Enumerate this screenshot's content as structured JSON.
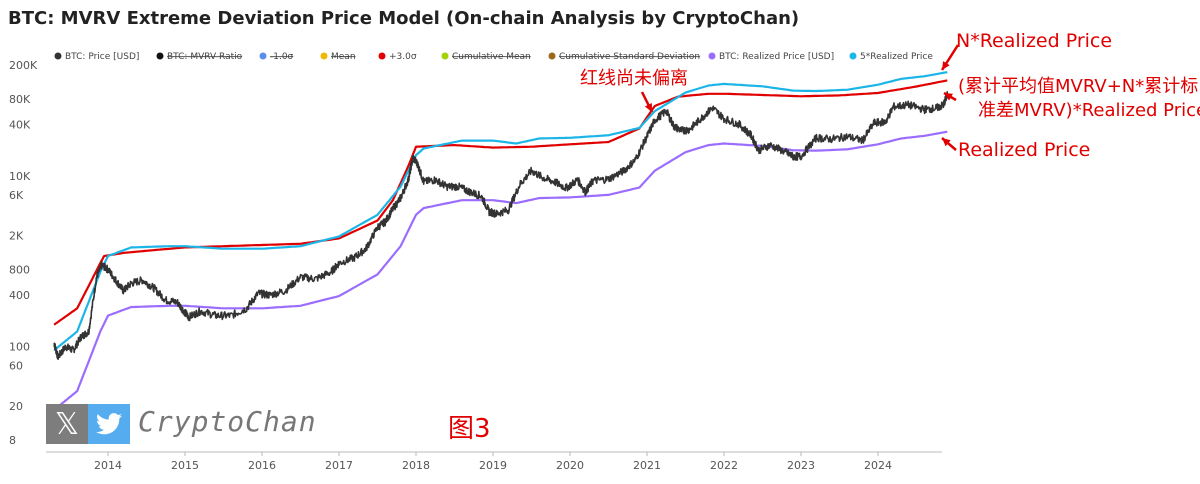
{
  "title": "BTC: MVRV Extreme Deviation Price Model (On-chain Analysis by CryptoChan)",
  "watermark": {
    "x_glyph": "𝕏",
    "brand": "CryptoChan",
    "icons": [
      "x-logo-icon",
      "twitter-bird-icon"
    ]
  },
  "figure_label": "图3",
  "annotations": {
    "top": "N*Realized Price",
    "middle_line1": "(累计平均值MVRV+N*累计标",
    "middle_line2": "准差MVRV)*Realized Price",
    "bottom": "Realized Price",
    "arrow_note": "红线尚未偏离",
    "color": "#e00000"
  },
  "chart_data": {
    "type": "line",
    "title": "BTC: MVRV Extreme Deviation Price Model (On-chain Analysis by CryptoChan)",
    "xlabel": "",
    "ylabel": "",
    "yscale": "log",
    "ylim": [
      6.5,
      230000
    ],
    "xlim": [
      2013.28,
      2024.9
    ],
    "grid": false,
    "legend_position": "top",
    "x_ticks": [
      "2014",
      "2015",
      "2016",
      "2017",
      "2018",
      "2019",
      "2020",
      "2021",
      "2022",
      "2023",
      "2024"
    ],
    "y_ticks": [
      "8",
      "20",
      "60",
      "100",
      "400",
      "800",
      "2K",
      "6K",
      "10K",
      "40K",
      "80K",
      "200K"
    ],
    "y_tick_values": [
      8,
      20,
      60,
      100,
      400,
      800,
      2000,
      6000,
      10000,
      40000,
      80000,
      200000
    ],
    "legend": [
      {
        "name": "BTC: Price [USD]",
        "color": "#333333",
        "struck": false
      },
      {
        "name": "BTC: MVRV Ratio",
        "color": "#111111",
        "struck": true
      },
      {
        "name": "-1.0σ",
        "color": "#5b8def",
        "struck": true
      },
      {
        "name": "Mean",
        "color": "#f2b705",
        "struck": true
      },
      {
        "name": "+3.0σ",
        "color": "#e00000",
        "struck": false
      },
      {
        "name": "Cumulative Mean",
        "color": "#a6d000",
        "struck": true
      },
      {
        "name": "Cumulative Standard Deviation",
        "color": "#9a6a1a",
        "struck": true
      },
      {
        "name": "BTC: Realized Price [USD]",
        "color": "#9b6dff",
        "struck": false
      },
      {
        "name": "5*Realized Price",
        "color": "#1cb5e8",
        "struck": false
      }
    ],
    "series": [
      {
        "name": "BTC: Price [USD]",
        "color": "#333333",
        "x": [
          2013.3,
          2013.35,
          2013.45,
          2013.55,
          2013.65,
          2013.75,
          2013.85,
          2013.92,
          2014.0,
          2014.1,
          2014.2,
          2014.3,
          2014.45,
          2014.6,
          2014.75,
          2014.9,
          2015.0,
          2015.05,
          2015.2,
          2015.4,
          2015.6,
          2015.8,
          2015.95,
          2016.1,
          2016.3,
          2016.5,
          2016.7,
          2016.9,
          2017.0,
          2017.2,
          2017.35,
          2017.5,
          2017.6,
          2017.7,
          2017.8,
          2017.9,
          2017.96,
          2018.02,
          2018.1,
          2018.25,
          2018.4,
          2018.55,
          2018.7,
          2018.85,
          2018.95,
          2019.05,
          2019.2,
          2019.35,
          2019.5,
          2019.65,
          2019.8,
          2019.95,
          2020.1,
          2020.2,
          2020.3,
          2020.5,
          2020.7,
          2020.85,
          2021.0,
          2021.1,
          2021.25,
          2021.35,
          2021.45,
          2021.55,
          2021.7,
          2021.85,
          2022.0,
          2022.2,
          2022.35,
          2022.45,
          2022.6,
          2022.8,
          2022.9,
          2023.0,
          2023.2,
          2023.4,
          2023.6,
          2023.8,
          2023.95,
          2024.1,
          2024.2,
          2024.4,
          2024.6,
          2024.75,
          2024.85,
          2024.9
        ],
        "y": [
          110,
          75,
          100,
          90,
          130,
          150,
          650,
          900,
          800,
          600,
          450,
          550,
          600,
          480,
          350,
          330,
          250,
          220,
          260,
          230,
          230,
          280,
          420,
          400,
          450,
          650,
          620,
          750,
          950,
          1100,
          1400,
          2500,
          2900,
          4100,
          5500,
          9000,
          16500,
          13800,
          8500,
          9000,
          7500,
          7500,
          6500,
          5800,
          3800,
          3600,
          4000,
          8000,
          11500,
          9500,
          8500,
          7200,
          9000,
          6500,
          8800,
          9200,
          11500,
          15500,
          29000,
          45000,
          58000,
          38000,
          34000,
          35000,
          47000,
          63000,
          47000,
          40000,
          30000,
          20000,
          23000,
          19000,
          16800,
          17000,
          28000,
          27000,
          29000,
          26000,
          42000,
          43000,
          65000,
          68000,
          60000,
          62000,
          68000,
          90000
        ]
      },
      {
        "name": "+3.0σ",
        "color": "#e00000",
        "x": [
          2013.3,
          2013.6,
          2013.9,
          2013.95,
          2014.2,
          2014.6,
          2015.0,
          2015.5,
          2016.0,
          2016.5,
          2017.0,
          2017.5,
          2017.7,
          2017.9,
          2018.0,
          2018.5,
          2019.0,
          2019.5,
          2020.0,
          2020.5,
          2020.9,
          2021.1,
          2021.4,
          2021.8,
          2022.0,
          2022.5,
          2023.0,
          2023.5,
          2024.0,
          2024.5,
          2024.9
        ],
        "y": [
          180,
          280,
          950,
          1150,
          1250,
          1350,
          1450,
          1500,
          1550,
          1600,
          1850,
          3000,
          5200,
          13000,
          22000,
          23000,
          21500,
          22000,
          23500,
          25000,
          36000,
          66000,
          85000,
          92000,
          92000,
          89000,
          86000,
          88000,
          94000,
          112000,
          132000
        ]
      },
      {
        "name": "BTC: Realized Price [USD]",
        "color": "#9b6dff",
        "x": [
          2013.3,
          2013.6,
          2013.9,
          2014.0,
          2014.3,
          2014.8,
          2015.0,
          2015.5,
          2016.0,
          2016.5,
          2017.0,
          2017.5,
          2017.8,
          2018.0,
          2018.1,
          2018.6,
          2019.0,
          2019.3,
          2019.6,
          2020.0,
          2020.5,
          2020.9,
          2021.1,
          2021.5,
          2021.8,
          2022.0,
          2022.5,
          2022.9,
          2023.2,
          2023.6,
          2024.0,
          2024.3,
          2024.6,
          2024.9
        ],
        "y": [
          18,
          30,
          150,
          230,
          290,
          300,
          300,
          280,
          280,
          300,
          390,
          700,
          1500,
          3500,
          4200,
          5200,
          5200,
          4800,
          5500,
          5600,
          6000,
          7300,
          11500,
          19000,
          23000,
          24000,
          22500,
          20000,
          19800,
          20500,
          23500,
          27500,
          29500,
          33000
        ]
      },
      {
        "name": "5*Realized Price",
        "color": "#1cb5e8",
        "x": [
          2013.3,
          2013.6,
          2013.9,
          2014.0,
          2014.3,
          2014.8,
          2015.0,
          2015.5,
          2016.0,
          2016.5,
          2017.0,
          2017.5,
          2017.8,
          2018.0,
          2018.1,
          2018.6,
          2019.0,
          2019.3,
          2019.6,
          2020.0,
          2020.5,
          2020.9,
          2021.1,
          2021.5,
          2021.8,
          2022.0,
          2022.5,
          2022.9,
          2023.2,
          2023.6,
          2024.0,
          2024.3,
          2024.6,
          2024.9
        ],
        "y": [
          90,
          150,
          750,
          1150,
          1450,
          1500,
          1500,
          1400,
          1400,
          1500,
          1950,
          3500,
          7500,
          17500,
          21000,
          26000,
          26000,
          24000,
          27500,
          28000,
          30000,
          36500,
          57500,
          95000,
          115000,
          120000,
          112500,
          100000,
          99000,
          102500,
          117500,
          137500,
          147500,
          165000
        ]
      }
    ]
  }
}
